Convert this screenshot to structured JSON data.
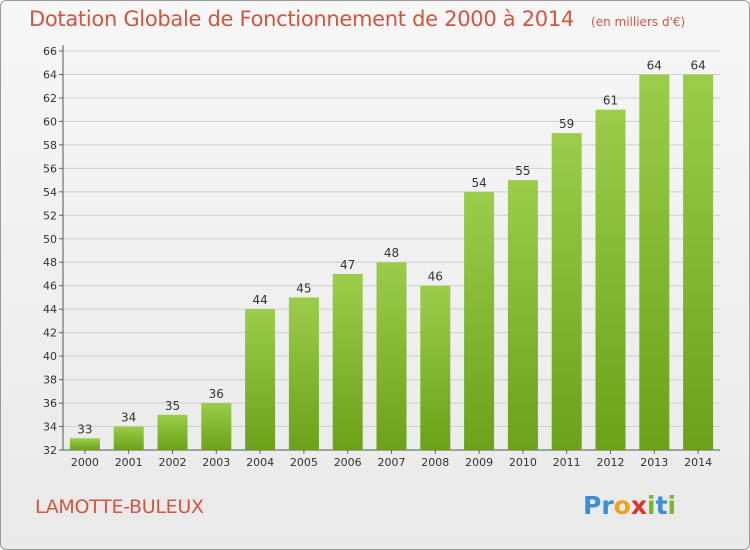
{
  "chart_data": {
    "type": "bar",
    "title": "Dotation Globale de Fonctionnement de 2000 à 2014",
    "subtitle": "(en milliers d'€)",
    "categories": [
      "2000",
      "2001",
      "2002",
      "2003",
      "2004",
      "2005",
      "2006",
      "2007",
      "2008",
      "2009",
      "2010",
      "2011",
      "2012",
      "2013",
      "2014"
    ],
    "values": [
      33,
      34,
      35,
      36,
      44,
      45,
      47,
      48,
      46,
      54,
      55,
      59,
      61,
      64,
      64
    ],
    "ylim": [
      32,
      66
    ],
    "yticks": [
      32,
      34,
      36,
      38,
      40,
      42,
      44,
      46,
      48,
      50,
      52,
      54,
      56,
      58,
      60,
      62,
      64,
      66
    ],
    "xlabel": "",
    "ylabel": "",
    "grid": true,
    "legend": "none"
  },
  "footer": {
    "commune": "LAMOTTE-BULEUX",
    "logo_letters": [
      "P",
      "r",
      "o",
      "x",
      "i",
      "t",
      "i"
    ]
  },
  "colors": {
    "bar_light": "#9bcd4a",
    "bar_dark": "#6aa219",
    "accent": "#d2553f",
    "logo": [
      "#3a8fd9",
      "#3a8fd9",
      "#f0a020",
      "#e03030",
      "#7ab828",
      "#3a8fd9",
      "#7ab828"
    ]
  }
}
